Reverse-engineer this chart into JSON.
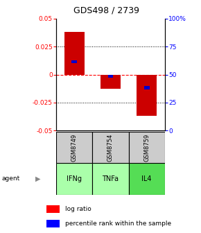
{
  "title": "GDS498 / 2739",
  "samples": [
    "GSM8749",
    "GSM8754",
    "GSM8759"
  ],
  "agents": [
    "IFNg",
    "TNFa",
    "IL4"
  ],
  "log_ratios": [
    0.038,
    -0.013,
    -0.037
  ],
  "percentile_ranks": [
    0.615,
    0.485,
    0.38
  ],
  "bar_color": "#cc0000",
  "pct_color": "#0000cc",
  "ylim": [
    -0.05,
    0.05
  ],
  "yticks_left": [
    -0.05,
    -0.025,
    0.0,
    0.025,
    0.05
  ],
  "yticks_left_labels": [
    "-0.05",
    "-0.025",
    "0",
    "0.025",
    "0.05"
  ],
  "yticks_right": [
    0,
    25,
    50,
    75,
    100
  ],
  "yticks_right_labels": [
    "0",
    "25",
    "50",
    "75",
    "100%"
  ],
  "gsm_bg": "#cccccc",
  "agent_colors": [
    "#aaffaa",
    "#aaffaa",
    "#55dd55"
  ],
  "agent_text_color": "black",
  "legend_red_label": "log ratio",
  "legend_blue_label": "percentile rank within the sample"
}
